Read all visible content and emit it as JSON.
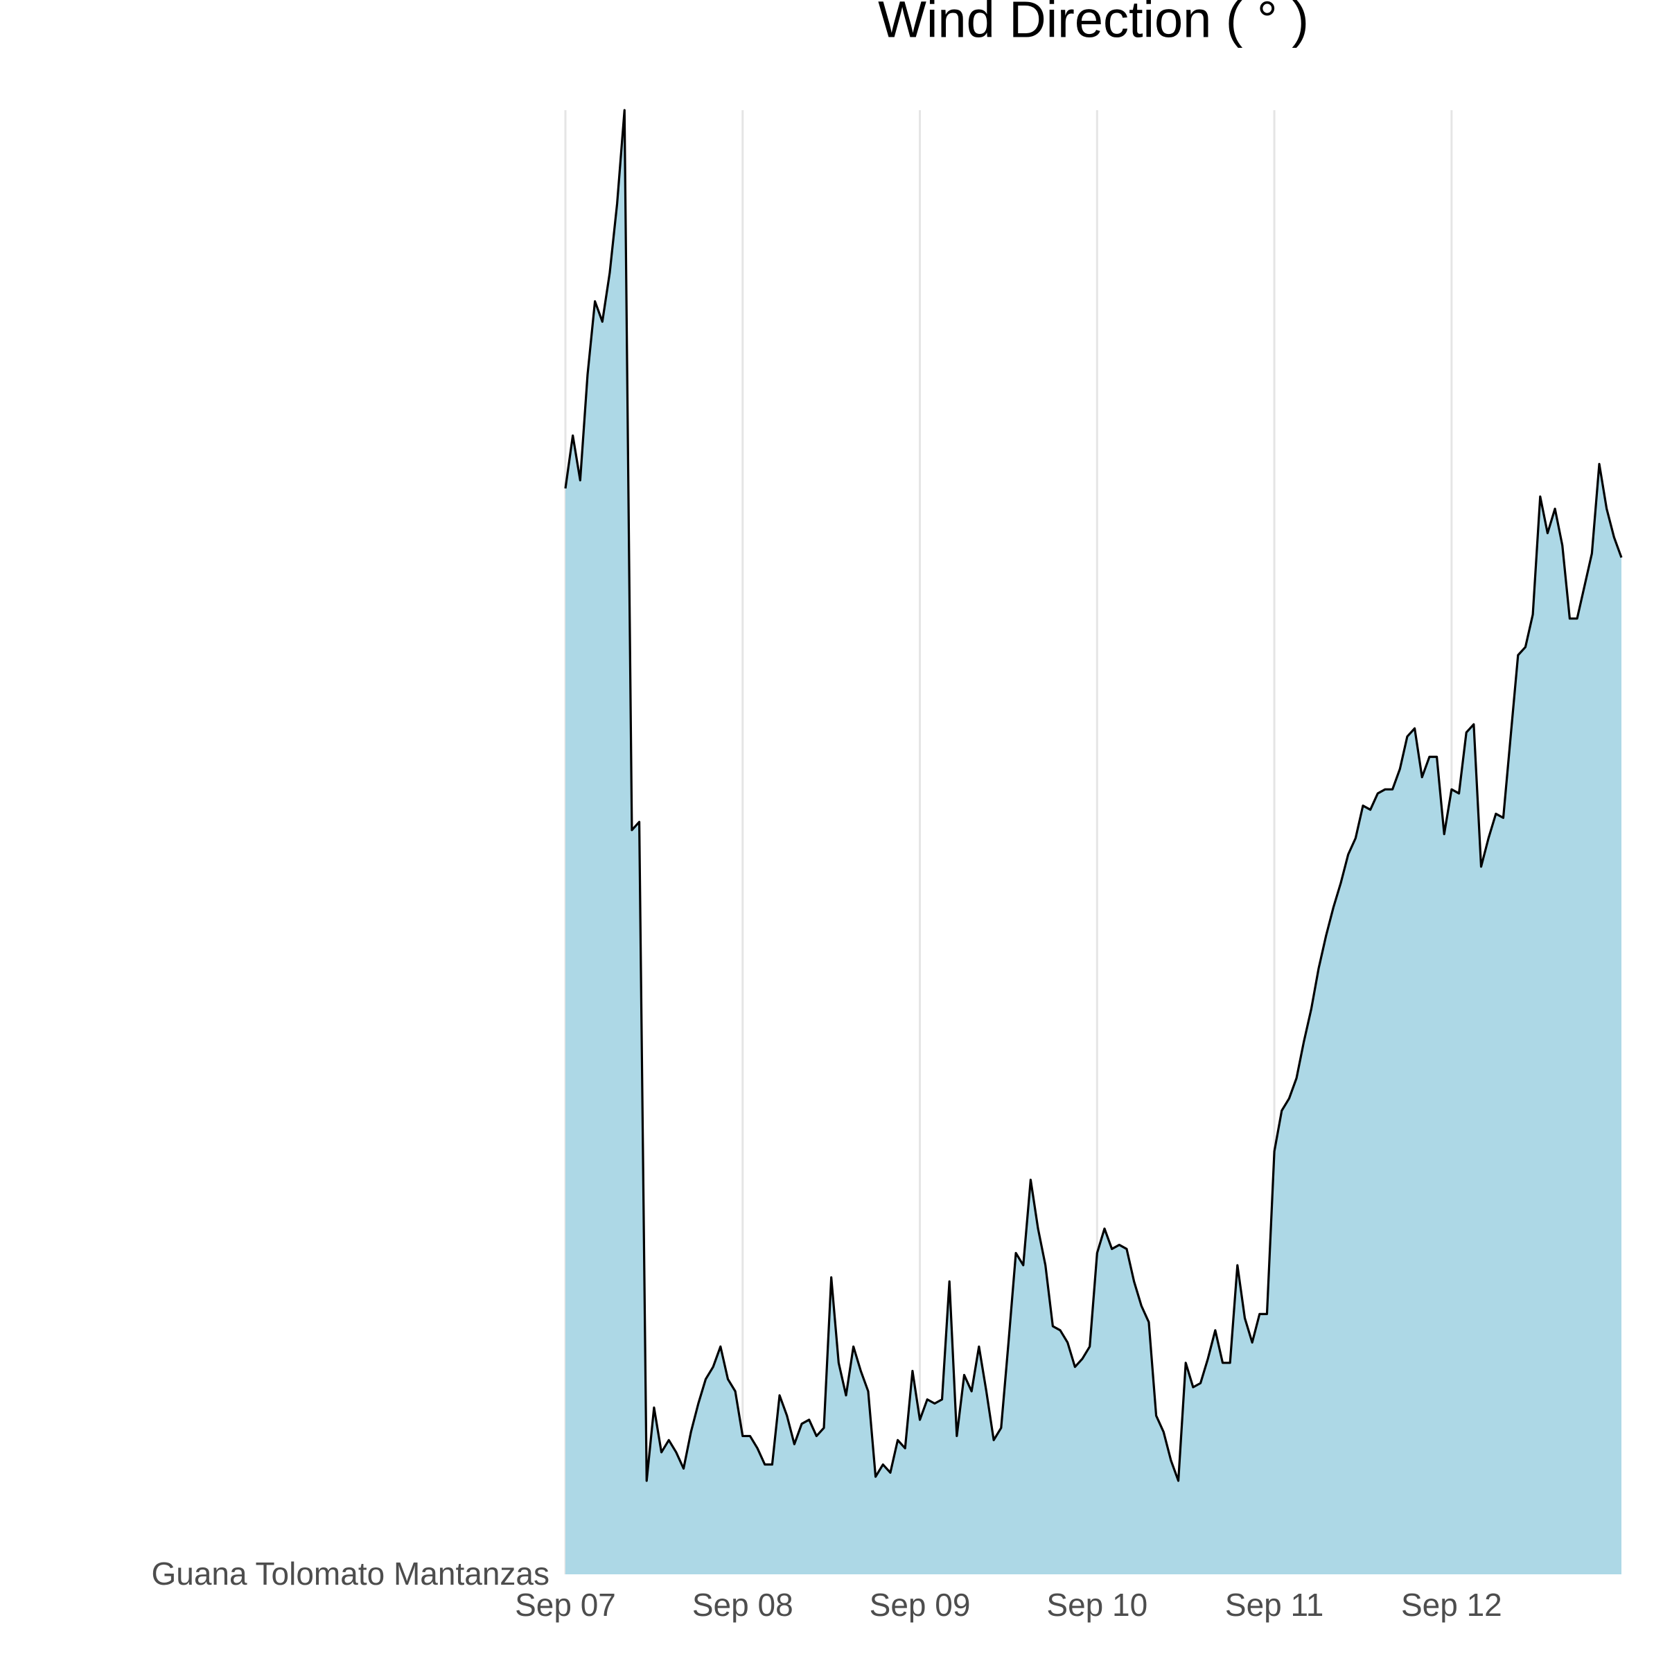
{
  "chart_data": {
    "type": "area",
    "title": "Wind Direction ( ° )",
    "categories": [
      "Guana Tolomato Mantanzas"
    ],
    "x": [
      0,
      1,
      2,
      3,
      4,
      5,
      6,
      7,
      8,
      9,
      10,
      11,
      12,
      13,
      14,
      15,
      16,
      17,
      18,
      19,
      20,
      21,
      22,
      23,
      24,
      25,
      26,
      27,
      28,
      29,
      30,
      31,
      32,
      33,
      34,
      35,
      36,
      37,
      38,
      39,
      40,
      41,
      42,
      43,
      44,
      45,
      46,
      47,
      48,
      49,
      50,
      51,
      52,
      53,
      54,
      55,
      56,
      57,
      58,
      59,
      60,
      61,
      62,
      63,
      64,
      65,
      66,
      67,
      68,
      69,
      70,
      71,
      72,
      73,
      74,
      75,
      76,
      77,
      78,
      79,
      80,
      81,
      82,
      83,
      84,
      85,
      86,
      87,
      88,
      89,
      90,
      91,
      92,
      93,
      94,
      95,
      96,
      97,
      98,
      99,
      100,
      101,
      102,
      103,
      104,
      105,
      106,
      107,
      108,
      109,
      110,
      111,
      112,
      113,
      114,
      115,
      116,
      117,
      118,
      119,
      120,
      121,
      122,
      123,
      124,
      125,
      126,
      127,
      128,
      129,
      130,
      131,
      132,
      133,
      134,
      135,
      136,
      137,
      138,
      139,
      140,
      141,
      142,
      143
    ],
    "series": [
      {
        "name": "Guana Tolomato Mantanzas",
        "color": "#add8e6",
        "values": [
          267,
          280,
          269,
          295,
          313,
          308,
          320,
          337,
          360,
          183,
          185,
          23,
          41,
          30,
          33,
          30,
          26,
          35,
          42,
          48,
          51,
          56,
          48,
          45,
          34,
          34,
          31,
          27,
          27,
          44,
          39,
          32,
          37,
          38,
          34,
          36,
          73,
          52,
          44,
          56,
          50,
          45,
          24,
          27,
          25,
          33,
          31,
          50,
          38,
          43,
          42,
          43,
          72,
          34,
          49,
          45,
          56,
          45,
          33,
          36,
          57,
          79,
          76,
          97,
          85,
          76,
          61,
          60,
          57,
          51,
          53,
          56,
          79,
          85,
          80,
          81,
          80,
          72,
          66,
          62,
          39,
          35,
          28,
          23,
          52,
          46,
          47,
          53,
          60,
          52,
          52,
          76,
          63,
          57,
          64,
          64,
          104,
          114,
          117,
          122,
          131,
          139,
          149,
          157,
          164,
          170,
          177,
          181,
          189,
          188,
          192,
          193,
          193,
          198,
          206,
          208,
          196,
          201,
          201,
          182,
          193,
          192,
          207,
          209,
          174,
          181,
          187,
          186,
          206,
          226,
          228,
          236,
          265,
          256,
          262,
          253,
          235,
          235,
          243,
          251,
          273,
          262,
          255,
          250
        ]
      }
    ],
    "xlim": [
      0,
      143
    ],
    "xticks": [
      {
        "value": 0,
        "label": "Sep 07"
      },
      {
        "value": 24,
        "label": "Sep 08"
      },
      {
        "value": 48,
        "label": "Sep 09"
      },
      {
        "value": 72,
        "label": "Sep 10"
      },
      {
        "value": 96,
        "label": "Sep 11"
      },
      {
        "value": 120,
        "label": "Sep 12"
      }
    ],
    "ylim": [
      0,
      360
    ],
    "grid": true
  }
}
